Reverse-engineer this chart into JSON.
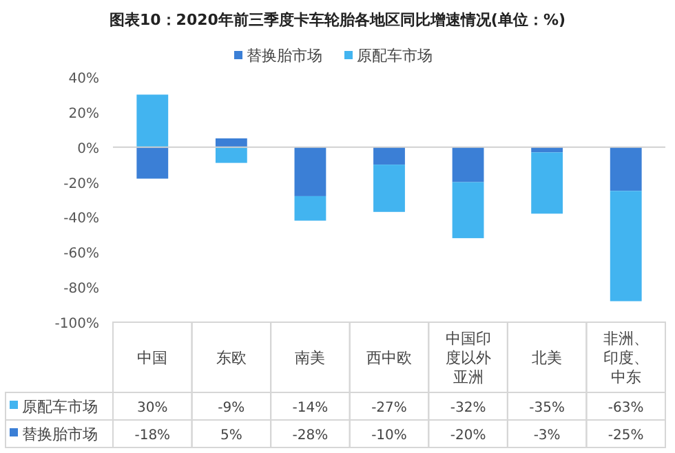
{
  "chart_data": {
    "type": "bar",
    "title": "图表10：2020年前三季度卡车轮胎各地区同比增速情况(单位：%)",
    "stacked": true,
    "legend": "top",
    "categories": [
      "中国",
      "东欧",
      "南美",
      "西中欧",
      "中国印度以外亚洲",
      "北美",
      "非洲、印度、中东"
    ],
    "series": [
      {
        "name": "替换胎市场",
        "color": "#3b7fd6",
        "values": [
          -18,
          5,
          -28,
          -10,
          -20,
          -3,
          -25
        ],
        "value_labels": [
          "-18%",
          "5%",
          "-28%",
          "-10%",
          "-20%",
          "-3%",
          "-25%"
        ]
      },
      {
        "name": "原配车市场",
        "color": "#42b4f0",
        "values": [
          30,
          -9,
          -14,
          -27,
          -32,
          -35,
          -63
        ],
        "value_labels": [
          "30%",
          "-9%",
          "-14%",
          "-27%",
          "-32%",
          "-35%",
          "-63%"
        ]
      }
    ],
    "ylim": [
      -100,
      40
    ],
    "yticks": [
      {
        "value": 40,
        "label": "40%"
      },
      {
        "value": 20,
        "label": "20%"
      },
      {
        "value": 0,
        "label": "0%"
      },
      {
        "value": -20,
        "label": "-20%"
      },
      {
        "value": -40,
        "label": "-40%"
      },
      {
        "value": -60,
        "label": "-60%"
      },
      {
        "value": -80,
        "label": "-80%"
      },
      {
        "value": -100,
        "label": "-100%"
      }
    ]
  }
}
